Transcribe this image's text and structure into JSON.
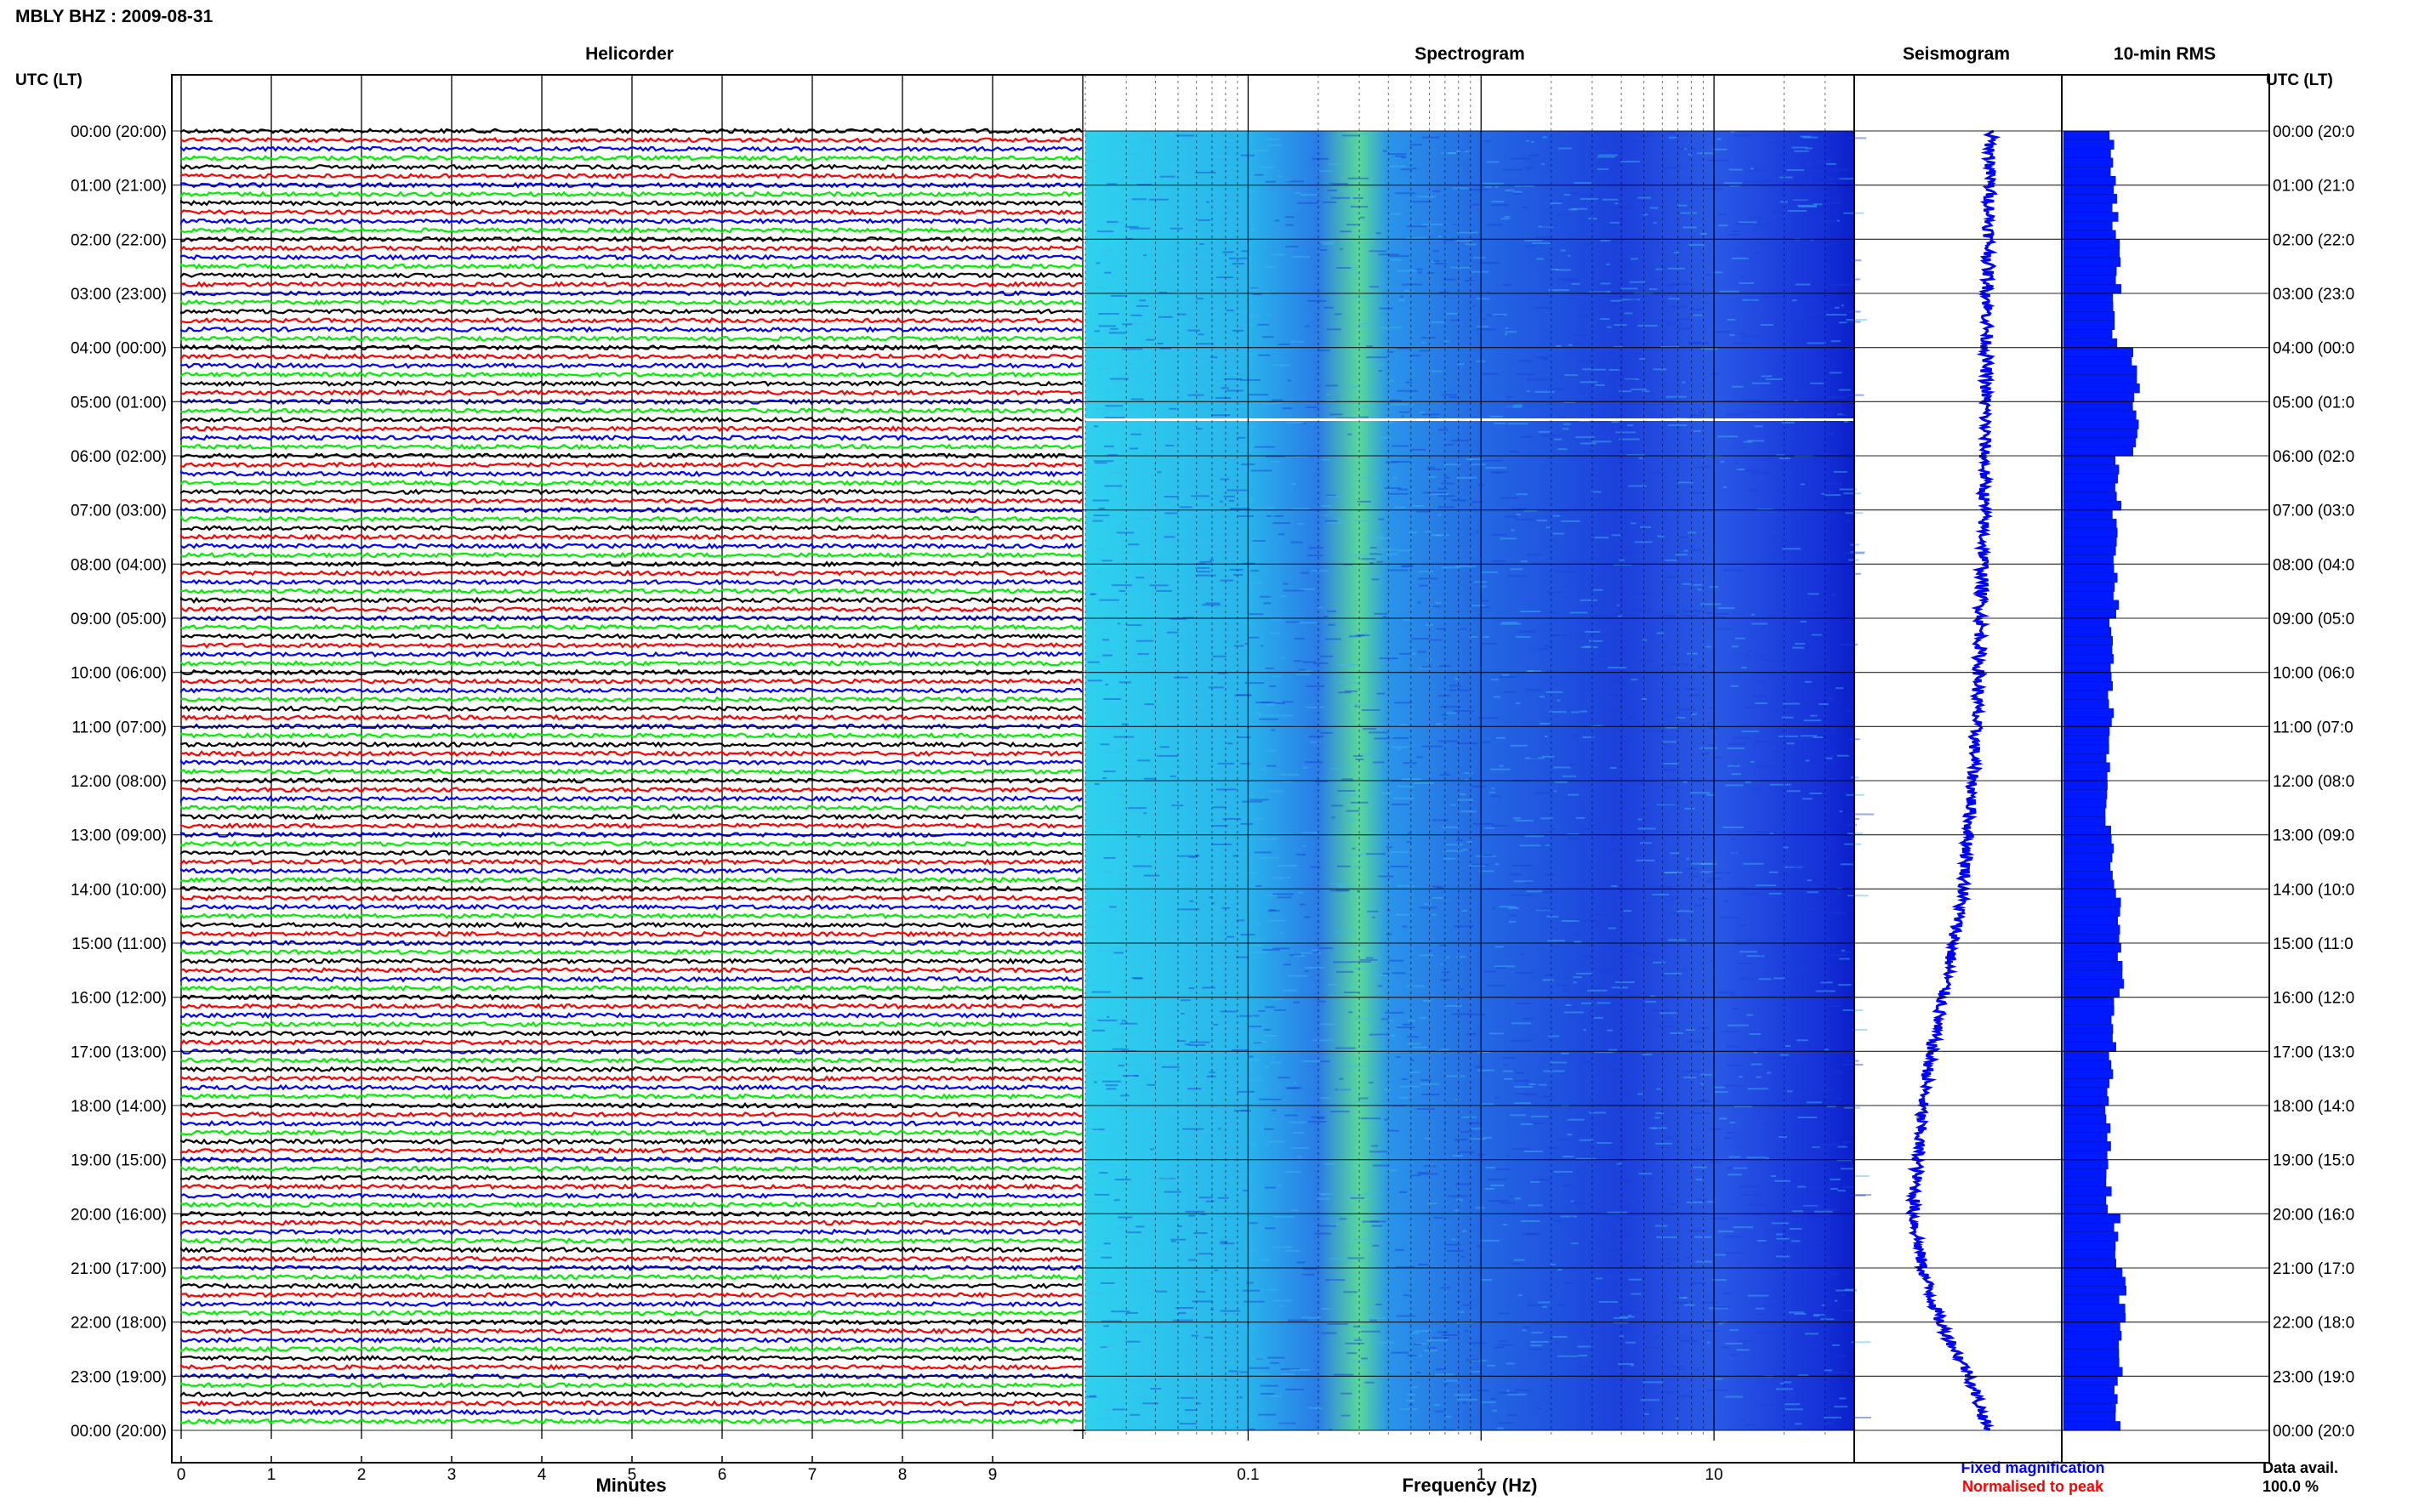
{
  "header": {
    "station_date": "MBLY BHZ : 2009-08-31",
    "utc_left": "UTC (LT)",
    "utc_right": "UTC (LT)"
  },
  "panels": {
    "helicorder": "Helicorder",
    "spectrogram": "Spectrogram",
    "seismogram": "Seismogram",
    "rms": "10-min RMS"
  },
  "footer": {
    "minutes_label": "Minutes",
    "frequency_label": "Frequency (Hz)",
    "fixed_magnification": "Fixed magnification",
    "normalised_to_peak": "Normalised to peak",
    "data_avail_label": "Data avail.",
    "data_avail_value": "100.0 %"
  },
  "colors": {
    "black": "#000000",
    "red": "#ff0000",
    "blue": "#0000ff",
    "green": "#00ee00",
    "spec_low": "#29c9f0",
    "spec_high": "#1a32e0",
    "rms_bar": "#0019ff",
    "grid": "#000000"
  },
  "chart_data": [
    {
      "type": "line",
      "title": "Helicorder",
      "xlabel": "Minutes",
      "xlim": [
        0,
        10
      ],
      "xticks": [
        "0",
        "1",
        "2",
        "3",
        "4",
        "5",
        "6",
        "7",
        "8",
        "9"
      ],
      "rows_per_hour": 6,
      "row_colors": [
        "black",
        "red",
        "blue",
        "green"
      ],
      "ylabels": [
        "00:00 (20:00)",
        "01:00 (21:00)",
        "02:00 (22:00)",
        "03:00 (23:00)",
        "04:00 (00:00)",
        "05:00 (01:00)",
        "06:00 (02:00)",
        "07:00 (03:00)",
        "08:00 (04:00)",
        "09:00 (05:00)",
        "10:00 (06:00)",
        "11:00 (07:00)",
        "12:00 (08:00)",
        "13:00 (09:00)",
        "14:00 (10:00)",
        "15:00 (11:00)",
        "16:00 (12:00)",
        "17:00 (13:00)",
        "18:00 (14:00)",
        "19:00 (15:00)",
        "20:00 (16:00)",
        "21:00 (17:00)",
        "22:00 (18:00)",
        "23:00 (19:00)",
        "00:00 (20:00)"
      ]
    },
    {
      "type": "heatmap",
      "title": "Spectrogram",
      "xlabel": "Frequency (Hz)",
      "x_scale": "log",
      "xlim": [
        0.02,
        40
      ],
      "xticks": [
        "0.1",
        "1",
        "10"
      ],
      "peak_band_hz": [
        0.25,
        0.35
      ],
      "gap_at": "05:20"
    },
    {
      "type": "line",
      "title": "Seismogram",
      "offset_hours": [
        0,
        2,
        4,
        6,
        8,
        10,
        12,
        14,
        16,
        17,
        18,
        20,
        21,
        22,
        23,
        24
      ],
      "offset_values": [
        0.55,
        0.52,
        0.48,
        0.45,
        0.42,
        0.35,
        0.25,
        0.1,
        -0.25,
        -0.45,
        -0.6,
        -0.75,
        -0.6,
        -0.3,
        0.2,
        0.5
      ]
    },
    {
      "type": "bar",
      "title": "10-min RMS",
      "orientation": "horizontal",
      "rms_hourly": [
        1.0,
        1.05,
        1.1,
        1.05,
        1.45,
        1.5,
        1.1,
        1.05,
        1.05,
        0.95,
        0.95,
        0.92,
        0.9,
        1.0,
        1.1,
        1.15,
        1.0,
        0.95,
        0.9,
        0.92,
        1.1,
        1.2,
        1.2,
        1.1
      ]
    }
  ]
}
